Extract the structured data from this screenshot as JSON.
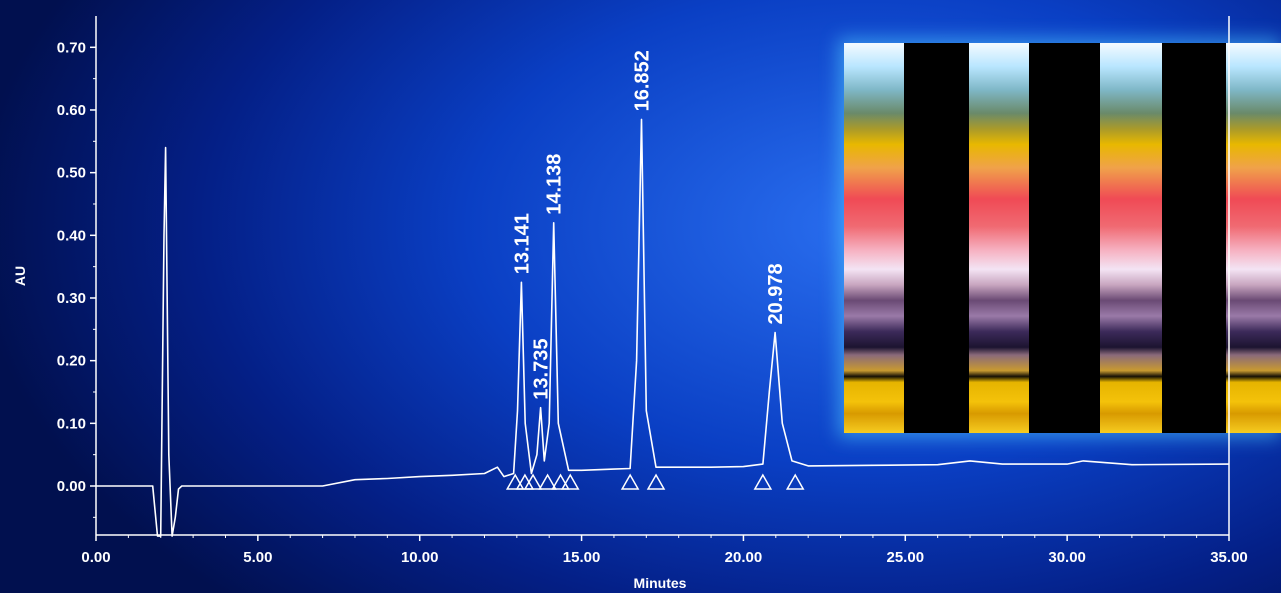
{
  "chart_data": {
    "type": "line",
    "xlabel": "Minutes",
    "ylabel": "AU",
    "xlim": [
      0,
      35
    ],
    "ylim": [
      -0.08,
      0.74
    ],
    "x_ticks": [
      "0.00",
      "5.00",
      "10.00",
      "15.00",
      "20.00",
      "25.00",
      "30.00",
      "35.00"
    ],
    "y_ticks": [
      "0.00",
      "0.10",
      "0.20",
      "0.30",
      "0.40",
      "0.50",
      "0.60",
      "0.70"
    ],
    "peaks": [
      {
        "label": "13.141",
        "rt": 13.141,
        "height": 0.325
      },
      {
        "label": "13.735",
        "rt": 13.735,
        "height": 0.125
      },
      {
        "label": "14.138",
        "rt": 14.138,
        "height": 0.42
      },
      {
        "label": "16.852",
        "rt": 16.852,
        "height": 0.585
      },
      {
        "label": "20.978",
        "rt": 20.978,
        "height": 0.245
      }
    ],
    "series": [
      {
        "values_x": [
          0,
          1.75,
          1.9,
          2.0,
          2.1,
          2.15,
          2.25,
          2.35,
          2.45,
          2.55,
          2.65,
          3,
          4,
          5,
          6,
          7,
          8,
          9,
          10,
          11,
          12,
          12.4,
          12.6,
          12.9,
          13.02,
          13.141,
          13.26,
          13.45,
          13.62,
          13.735,
          13.85,
          14.0,
          14.138,
          14.28,
          14.6,
          15,
          16,
          16.5,
          16.7,
          16.852,
          17.0,
          17.3,
          18,
          19,
          20,
          20.6,
          20.8,
          20.978,
          21.2,
          21.5,
          22,
          24,
          26,
          27,
          28,
          30,
          30.5,
          32,
          35
        ],
        "values_y": [
          0.0,
          0.0,
          -0.08,
          -0.08,
          0.4,
          0.54,
          0.05,
          -0.08,
          -0.05,
          -0.005,
          0.0,
          0.0,
          0.0,
          0.0,
          0.0,
          0.0,
          0.01,
          0.012,
          0.015,
          0.017,
          0.02,
          0.03,
          0.015,
          0.02,
          0.12,
          0.325,
          0.1,
          0.02,
          0.05,
          0.125,
          0.04,
          0.1,
          0.42,
          0.1,
          0.025,
          0.025,
          0.027,
          0.028,
          0.2,
          0.585,
          0.12,
          0.03,
          0.03,
          0.03,
          0.031,
          0.035,
          0.15,
          0.245,
          0.1,
          0.04,
          0.032,
          0.033,
          0.034,
          0.04,
          0.035,
          0.035,
          0.04,
          0.034,
          0.035
        ]
      }
    ],
    "integration_markers": [
      12.95,
      13.25,
      13.5,
      13.95,
      14.35,
      14.65,
      16.5,
      17.3,
      20.6,
      21.6
    ],
    "grid": false,
    "inset": "TLC plate image with four bands"
  },
  "colors": {
    "trace": "#ffffff",
    "axis": "#ffffff",
    "background": "#0a3fc4"
  }
}
